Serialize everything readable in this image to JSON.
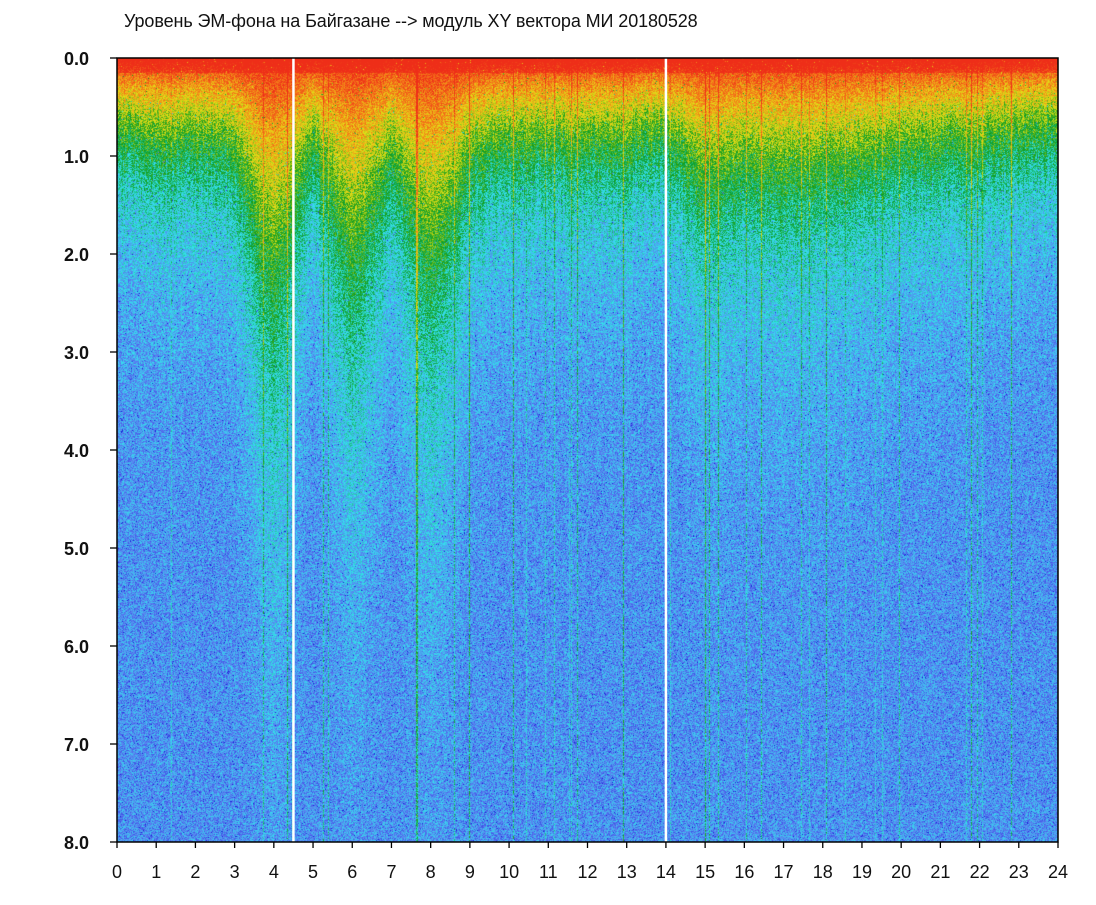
{
  "chart_data": {
    "type": "heatmap",
    "title": "Уровень ЭМ-фона на Байгазане   -->  модуль XY вектора МИ   20180528",
    "xlabel": "",
    "ylabel": "",
    "x_ticks": [
      "0",
      "1",
      "2",
      "3",
      "4",
      "5",
      "6",
      "7",
      "8",
      "9",
      "10",
      "11",
      "12",
      "13",
      "14",
      "15",
      "16",
      "17",
      "18",
      "19",
      "20",
      "21",
      "22",
      "23",
      "24"
    ],
    "y_ticks": [
      "0.0",
      "1.0",
      "2.0",
      "3.0",
      "4.0",
      "5.0",
      "6.0",
      "7.0",
      "8.0"
    ],
    "xlim": [
      0,
      24
    ],
    "ylim": [
      0,
      8
    ],
    "y_axis_inverted": true,
    "grid": false,
    "colormap": [
      "#1a21d8",
      "#5a7cf0",
      "#34e3ee",
      "#0b9a1e",
      "#e4e117",
      "#f47b18",
      "#ee2e18"
    ],
    "series": [
      {
        "x": [
          0,
          1,
          2,
          3,
          4,
          5,
          6,
          7,
          8,
          9,
          10,
          11,
          12,
          13,
          14,
          15,
          16,
          17,
          18,
          19,
          20,
          21,
          22,
          23,
          24
        ],
        "values": [
          1.0,
          1.1,
          1.1,
          1.2,
          2.8,
          1.1,
          2.5,
          1.3,
          2.6,
          1.3,
          1.1,
          1.1,
          1.1,
          1.1,
          1.0,
          1.6,
          1.4,
          1.5,
          1.4,
          1.3,
          1.2,
          1.1,
          1.1,
          1.0,
          0.9
        ]
      }
    ],
    "gaps_x": [
      4.5,
      14.0
    ]
  }
}
